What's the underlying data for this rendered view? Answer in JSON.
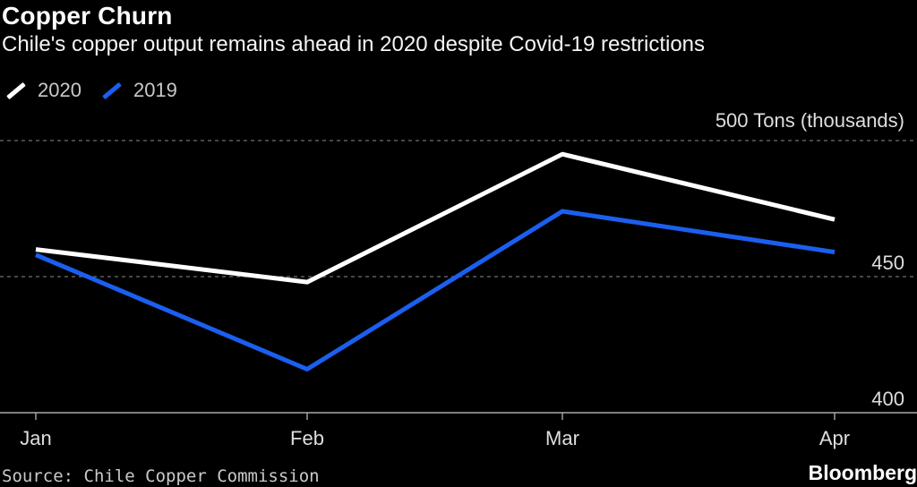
{
  "chart_data": {
    "type": "line",
    "title": "Copper Churn",
    "subtitle": "Chile's copper output remains ahead in 2020 despite Covid-19 restrictions",
    "categories": [
      "Jan",
      "Feb",
      "Mar",
      "Apr"
    ],
    "series": [
      {
        "name": "2020",
        "color": "#ffffff",
        "values": [
          460,
          448,
          495,
          471
        ]
      },
      {
        "name": "2019",
        "color": "#1b5ff0",
        "values": [
          458,
          416,
          474,
          459
        ]
      }
    ],
    "y_axis": {
      "top_label": "500 Tons (thousands)",
      "ticks": [
        500,
        450,
        400
      ],
      "unit": "Tons (thousands)",
      "side": "right"
    },
    "ylim": [
      400,
      500
    ],
    "grid": "horizontal-dashed",
    "legend_position": "top-left",
    "colors": {
      "background": "#000000",
      "grid_dashed": "#6f6f6f",
      "axis_line": "#a9a9a9",
      "tick_text": "#dedede"
    }
  },
  "footer": {
    "source": "Source: Chile Copper Commission",
    "brand": "Bloomberg"
  }
}
